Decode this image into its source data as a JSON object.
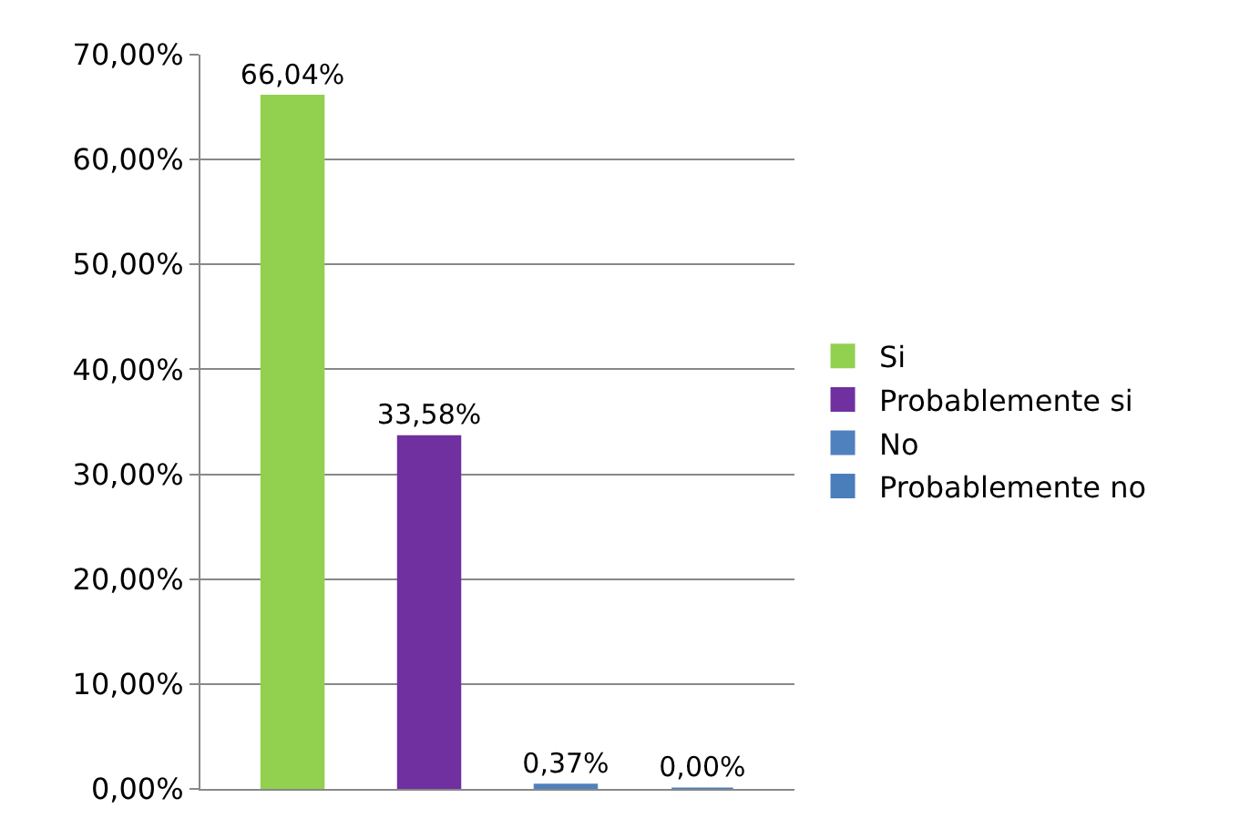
{
  "chart_data": {
    "type": "bar",
    "categories": [
      null
    ],
    "series": [
      {
        "name": "Si",
        "color": "#92d050",
        "values": [
          66.04
        ],
        "value_labels": [
          "66,04%"
        ]
      },
      {
        "name": "Probablemente si",
        "color": "#7030a0",
        "values": [
          33.58
        ],
        "value_labels": [
          "33,58%"
        ]
      },
      {
        "name": "No",
        "color": "#4f81bd",
        "values": [
          0.37
        ],
        "value_labels": [
          "0,37%"
        ]
      },
      {
        "name": "Probablemente no",
        "color": "#4a7ebb",
        "values": [
          0.0
        ],
        "value_labels": [
          "0,00%"
        ]
      }
    ],
    "ylim": [
      0,
      70
    ],
    "yticks": [
      {
        "value": 0,
        "label": "0,00%"
      },
      {
        "value": 10,
        "label": "10,00%"
      },
      {
        "value": 20,
        "label": "20,00%"
      },
      {
        "value": 30,
        "label": "30,00%"
      },
      {
        "value": 40,
        "label": "40,00%"
      },
      {
        "value": 50,
        "label": "50,00%"
      },
      {
        "value": 60,
        "label": "60,00%"
      },
      {
        "value": 70,
        "label": "70,00%"
      }
    ],
    "grid": "y",
    "legend": "right",
    "tick_labels": "y"
  }
}
